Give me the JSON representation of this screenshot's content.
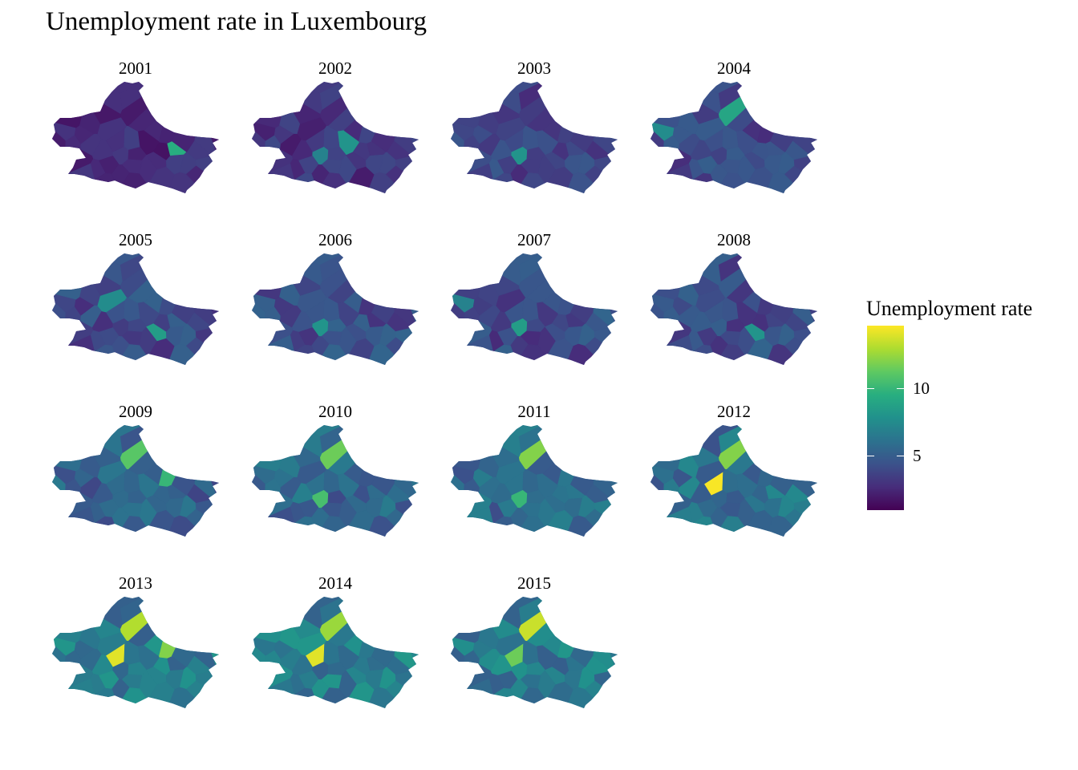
{
  "title": "Unemployment rate in Luxembourg",
  "legend": {
    "title": "Unemployment rate",
    "min": 1,
    "max": 14.6,
    "ticks": [
      {
        "value": 5,
        "label": "5"
      },
      {
        "value": 10,
        "label": "10"
      }
    ],
    "colors": [
      "#440154",
      "#472d7b",
      "#3b528b",
      "#2c728e",
      "#21918c",
      "#28ae80",
      "#5ec962",
      "#addc30",
      "#fde725"
    ]
  },
  "panels": [
    {
      "year": "2001",
      "base": 2.6,
      "spread": 1.0,
      "hot": [
        {
          "r": 0.34,
          "v": 9.5
        }
      ]
    },
    {
      "year": "2002",
      "base": 3.0,
      "spread": 1.0,
      "hot": [
        {
          "r": 0.58,
          "v": 8.0
        },
        {
          "r": 0.18,
          "v": 7.0
        }
      ]
    },
    {
      "year": "2003",
      "base": 3.7,
      "spread": 1.1,
      "hot": [
        {
          "r": 0.18,
          "v": 8.0
        }
      ]
    },
    {
      "year": "2004",
      "base": 3.9,
      "spread": 1.2,
      "hot": [
        {
          "r": 0.84,
          "v": 9.0
        },
        {
          "r": 0.73,
          "v": 7.5
        }
      ]
    },
    {
      "year": "2005",
      "base": 4.0,
      "spread": 1.3,
      "hot": [
        {
          "r": 0.24,
          "v": 8.5
        },
        {
          "r": 0.63,
          "v": 7.5
        }
      ]
    },
    {
      "year": "2006",
      "base": 4.1,
      "spread": 1.3,
      "hot": [
        {
          "r": 0.18,
          "v": 8.0
        }
      ]
    },
    {
      "year": "2007",
      "base": 4.0,
      "spread": 1.4,
      "hot": [
        {
          "r": 0.18,
          "v": 8.5
        },
        {
          "r": 0.73,
          "v": 7.0
        }
      ]
    },
    {
      "year": "2008",
      "base": 4.1,
      "spread": 1.3,
      "hot": [
        {
          "r": 0.24,
          "v": 8.0
        }
      ]
    },
    {
      "year": "2009",
      "base": 5.1,
      "spread": 1.4,
      "hot": [
        {
          "r": 0.84,
          "v": 11.0
        },
        {
          "r": 0.79,
          "v": 10.0
        }
      ]
    },
    {
      "year": "2010",
      "base": 5.3,
      "spread": 1.5,
      "hot": [
        {
          "r": 0.84,
          "v": 11.5
        },
        {
          "r": 0.18,
          "v": 10.5
        }
      ]
    },
    {
      "year": "2011",
      "base": 5.5,
      "spread": 1.4,
      "hot": [
        {
          "r": 0.84,
          "v": 12.0
        },
        {
          "r": 0.18,
          "v": 10.0
        }
      ]
    },
    {
      "year": "2012",
      "base": 5.9,
      "spread": 1.5,
      "hot": [
        {
          "r": 0.5,
          "v": 14.5
        },
        {
          "r": 0.84,
          "v": 12.0
        }
      ]
    },
    {
      "year": "2013",
      "base": 6.5,
      "spread": 1.6,
      "hot": [
        {
          "r": 0.5,
          "v": 14.0
        },
        {
          "r": 0.84,
          "v": 13.0
        },
        {
          "r": 0.79,
          "v": 12.0
        }
      ]
    },
    {
      "year": "2014",
      "base": 6.6,
      "spread": 1.6,
      "hot": [
        {
          "r": 0.5,
          "v": 14.0
        },
        {
          "r": 0.84,
          "v": 12.5
        }
      ]
    },
    {
      "year": "2015",
      "base": 6.5,
      "spread": 1.6,
      "hot": [
        {
          "r": 0.84,
          "v": 13.5
        },
        {
          "r": 0.5,
          "v": 11.5
        }
      ]
    }
  ]
}
